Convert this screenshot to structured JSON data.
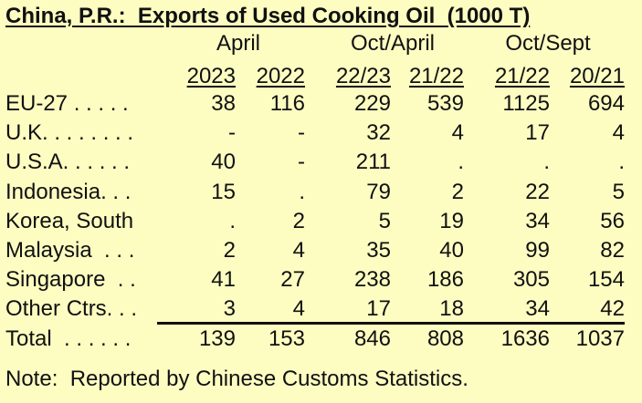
{
  "title": "China, P.R.:  Exports of Used Cooking Oil  (1000 T)",
  "column_groups": [
    "April",
    "Oct/April",
    "Oct/Sept"
  ],
  "column_years": [
    "2023",
    "2022",
    "22/23",
    "21/22",
    "21/22",
    "20/21"
  ],
  "rows": [
    {
      "label": "EU-27 . . . . .",
      "values": [
        "38",
        "116",
        "229",
        "539",
        "1125",
        "694"
      ]
    },
    {
      "label": "U.K. . . . . . . .",
      "values": [
        "-",
        "-",
        "32",
        "4",
        "17",
        "4"
      ]
    },
    {
      "label": "U.S.A. . . . . .",
      "values": [
        "40",
        "-",
        "211",
        ".",
        ".",
        "."
      ]
    },
    {
      "label": "Indonesia. . .",
      "values": [
        "15",
        ".",
        "79",
        "2",
        "22",
        "5"
      ]
    },
    {
      "label": "Korea, South",
      "values": [
        ".",
        "2",
        "5",
        "19",
        "34",
        "56"
      ]
    },
    {
      "label": "Malaysia  . . .",
      "values": [
        "2",
        "4",
        "35",
        "40",
        "99",
        "82"
      ]
    },
    {
      "label": "Singapore  . .",
      "values": [
        "41",
        "27",
        "238",
        "186",
        "305",
        "154"
      ]
    },
    {
      "label": "Other Ctrs. . .",
      "values": [
        "3",
        "4",
        "17",
        "18",
        "34",
        "42"
      ]
    }
  ],
  "total": {
    "label": "Total  . . . . . .",
    "values": [
      "139",
      "153",
      "846",
      "808",
      "1636",
      "1037"
    ]
  },
  "note": "Note:  Reported by Chinese Customs Statistics."
}
